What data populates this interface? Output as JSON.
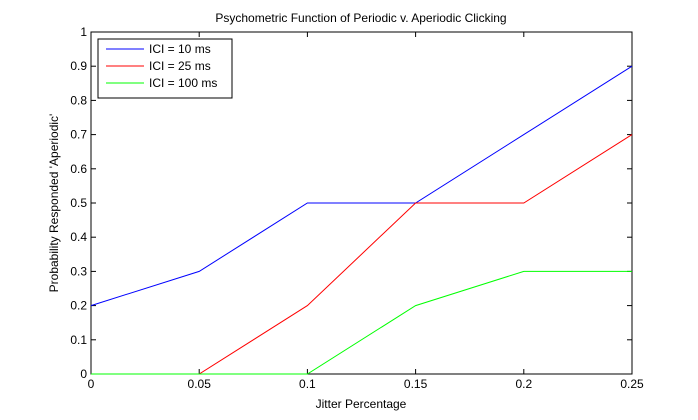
{
  "chart_data": {
    "type": "line",
    "title": "Psychometric Function of Periodic v. Aperiodic Clicking",
    "xlabel": "Jitter Percentage",
    "ylabel": "Probability Responded 'Aperiodic'",
    "xlim": [
      0,
      0.25
    ],
    "ylim": [
      0,
      1
    ],
    "x": [
      0,
      0.05,
      0.1,
      0.15,
      0.2,
      0.25
    ],
    "xticks": [
      "0",
      "0.05",
      "0.1",
      "0.15",
      "0.2",
      "0.25"
    ],
    "yticks": [
      "0",
      "0.1",
      "0.2",
      "0.3",
      "0.4",
      "0.5",
      "0.6",
      "0.7",
      "0.8",
      "0.9",
      "1"
    ],
    "grid": false,
    "legend_position": "top-left",
    "series": [
      {
        "name": "ICI = 10 ms",
        "color": "#0000ff",
        "values": [
          0.2,
          0.3,
          0.5,
          0.5,
          0.7,
          0.9
        ]
      },
      {
        "name": "ICI = 25 ms",
        "color": "#ff0000",
        "values": [
          0,
          0,
          0.2,
          0.5,
          0.5,
          0.7
        ]
      },
      {
        "name": "ICI = 100 ms",
        "color": "#00ff00",
        "values": [
          0,
          0,
          0,
          0.2,
          0.3,
          0.3
        ]
      }
    ]
  }
}
